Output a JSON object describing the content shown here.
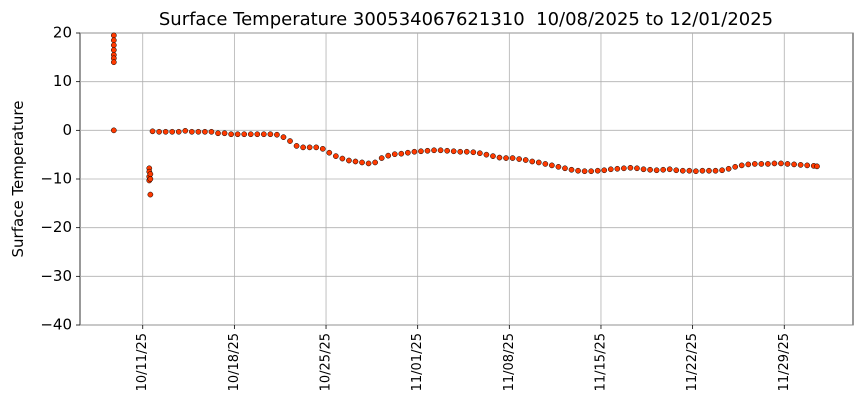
{
  "chart_data": {
    "type": "scatter",
    "title": "Surface Temperature 300534067621310  10/08/2025 to 12/01/2025",
    "y_label": "Surface Temperature",
    "xlim": [
      "2025-10-06T05:00",
      "2025-12-04T06:00"
    ],
    "xticks": [
      {
        "value": "2025-10-11T00:00",
        "label": "10/11/25"
      },
      {
        "value": "2025-10-18T00:00",
        "label": "10/18/25"
      },
      {
        "value": "2025-10-25T00:00",
        "label": "10/25/25"
      },
      {
        "value": "2025-11-01T00:00",
        "label": "11/01/25"
      },
      {
        "value": "2025-11-08T00:00",
        "label": "11/08/25"
      },
      {
        "value": "2025-11-15T00:00",
        "label": "11/15/25"
      },
      {
        "value": "2025-11-22T00:00",
        "label": "11/22/25"
      },
      {
        "value": "2025-11-29T00:00",
        "label": "11/29/25"
      }
    ],
    "ylim": [
      -40,
      20
    ],
    "yticks": [
      {
        "value": -40,
        "label": "−40"
      },
      {
        "value": -30,
        "label": "−30"
      },
      {
        "value": -20,
        "label": "−20"
      },
      {
        "value": -10,
        "label": "−10"
      },
      0,
      10,
      20
    ],
    "grid": true,
    "series": [
      {
        "color": "#ff3a00",
        "x": [
          "2025-10-08T19:00",
          "2025-10-08T19:00",
          "2025-10-08T19:00",
          "2025-10-08T19:00",
          "2025-10-08T19:00",
          "2025-10-08T19:00",
          "2025-10-08T19:00",
          "2025-10-08T19:00",
          "2025-10-11T12:00",
          "2025-10-11T12:00",
          "2025-10-11T12:00",
          "2025-10-11T12:00",
          "2025-10-11T14:00",
          "2025-10-11T14:00",
          "2025-10-11T14:00",
          "2025-10-11T18:00",
          "2025-10-12T06:00",
          "2025-10-12T18:00",
          "2025-10-13T06:00",
          "2025-10-13T18:00",
          "2025-10-14T06:00",
          "2025-10-14T18:00",
          "2025-10-15T06:00",
          "2025-10-15T18:00",
          "2025-10-16T06:00",
          "2025-10-16T18:00",
          "2025-10-17T06:00",
          "2025-10-17T18:00",
          "2025-10-18T06:00",
          "2025-10-18T18:00",
          "2025-10-19T06:00",
          "2025-10-19T18:00",
          "2025-10-20T06:00",
          "2025-10-20T18:00",
          "2025-10-21T06:00",
          "2025-10-21T18:00",
          "2025-10-22T06:00",
          "2025-10-22T18:00",
          "2025-10-23T06:00",
          "2025-10-23T18:00",
          "2025-10-24T06:00",
          "2025-10-24T18:00",
          "2025-10-25T06:00",
          "2025-10-25T18:00",
          "2025-10-26T06:00",
          "2025-10-26T18:00",
          "2025-10-27T06:00",
          "2025-10-27T18:00",
          "2025-10-28T06:00",
          "2025-10-28T18:00",
          "2025-10-29T06:00",
          "2025-10-29T18:00",
          "2025-10-30T06:00",
          "2025-10-30T18:00",
          "2025-10-31T06:00",
          "2025-10-31T18:00",
          "2025-11-01T06:00",
          "2025-11-01T18:00",
          "2025-11-02T06:00",
          "2025-11-02T18:00",
          "2025-11-03T06:00",
          "2025-11-03T18:00",
          "2025-11-04T06:00",
          "2025-11-04T18:00",
          "2025-11-05T06:00",
          "2025-11-05T18:00",
          "2025-11-06T06:00",
          "2025-11-06T18:00",
          "2025-11-07T06:00",
          "2025-11-07T18:00",
          "2025-11-08T06:00",
          "2025-11-08T18:00",
          "2025-11-09T06:00",
          "2025-11-09T18:00",
          "2025-11-10T06:00",
          "2025-11-10T18:00",
          "2025-11-11T06:00",
          "2025-11-11T18:00",
          "2025-11-12T06:00",
          "2025-11-12T18:00",
          "2025-11-13T06:00",
          "2025-11-13T18:00",
          "2025-11-14T06:00",
          "2025-11-14T18:00",
          "2025-11-15T06:00",
          "2025-11-15T18:00",
          "2025-11-16T06:00",
          "2025-11-16T18:00",
          "2025-11-17T06:00",
          "2025-11-17T18:00",
          "2025-11-18T06:00",
          "2025-11-18T18:00",
          "2025-11-19T06:00",
          "2025-11-19T18:00",
          "2025-11-20T06:00",
          "2025-11-20T18:00",
          "2025-11-21T06:00",
          "2025-11-21T18:00",
          "2025-11-22T06:00",
          "2025-11-22T18:00",
          "2025-11-23T06:00",
          "2025-11-23T18:00",
          "2025-11-24T06:00",
          "2025-11-24T18:00",
          "2025-11-25T06:00",
          "2025-11-25T18:00",
          "2025-11-26T06:00",
          "2025-11-26T18:00",
          "2025-11-27T06:00",
          "2025-11-27T18:00",
          "2025-11-28T06:00",
          "2025-11-28T18:00",
          "2025-11-29T06:00",
          "2025-11-29T18:00",
          "2025-11-30T06:00",
          "2025-11-30T18:00",
          "2025-12-01T06:00",
          "2025-12-01T12:00"
        ],
        "values": [
          19.5,
          18.5,
          17.5,
          16.5,
          15.5,
          14.8,
          14,
          0,
          -7.8,
          -8.5,
          -9.5,
          -10.3,
          -9,
          -10,
          -13.2,
          -0.2,
          -0.3,
          -0.3,
          -0.3,
          -0.3,
          -0.1,
          -0.3,
          -0.3,
          -0.3,
          -0.3,
          -0.6,
          -0.6,
          -0.8,
          -0.8,
          -0.8,
          -0.8,
          -0.8,
          -0.8,
          -0.8,
          -0.9,
          -1.4,
          -2.2,
          -3.2,
          -3.5,
          -3.5,
          -3.5,
          -3.8,
          -4.6,
          -5.3,
          -5.8,
          -6.2,
          -6.4,
          -6.6,
          -6.8,
          -6.6,
          -5.7,
          -5.2,
          -4.9,
          -4.8,
          -4.6,
          -4.4,
          -4.3,
          -4.2,
          -4.1,
          -4.1,
          -4.2,
          -4.3,
          -4.4,
          -4.4,
          -4.5,
          -4.7,
          -5.0,
          -5.3,
          -5.6,
          -5.7,
          -5.7,
          -5.9,
          -6.1,
          -6.4,
          -6.6,
          -6.9,
          -7.2,
          -7.5,
          -7.8,
          -8.1,
          -8.3,
          -8.4,
          -8.4,
          -8.3,
          -8.2,
          -8.0,
          -7.9,
          -7.8,
          -7.7,
          -7.8,
          -8.0,
          -8.1,
          -8.2,
          -8.1,
          -8.0,
          -8.2,
          -8.3,
          -8.3,
          -8.4,
          -8.3,
          -8.3,
          -8.3,
          -8.2,
          -7.9,
          -7.5,
          -7.2,
          -7.0,
          -6.9,
          -6.9,
          -6.9,
          -6.8,
          -6.8,
          -6.9,
          -7.0,
          -7.1,
          -7.2,
          -7.3,
          -7.4
        ]
      }
    ]
  }
}
